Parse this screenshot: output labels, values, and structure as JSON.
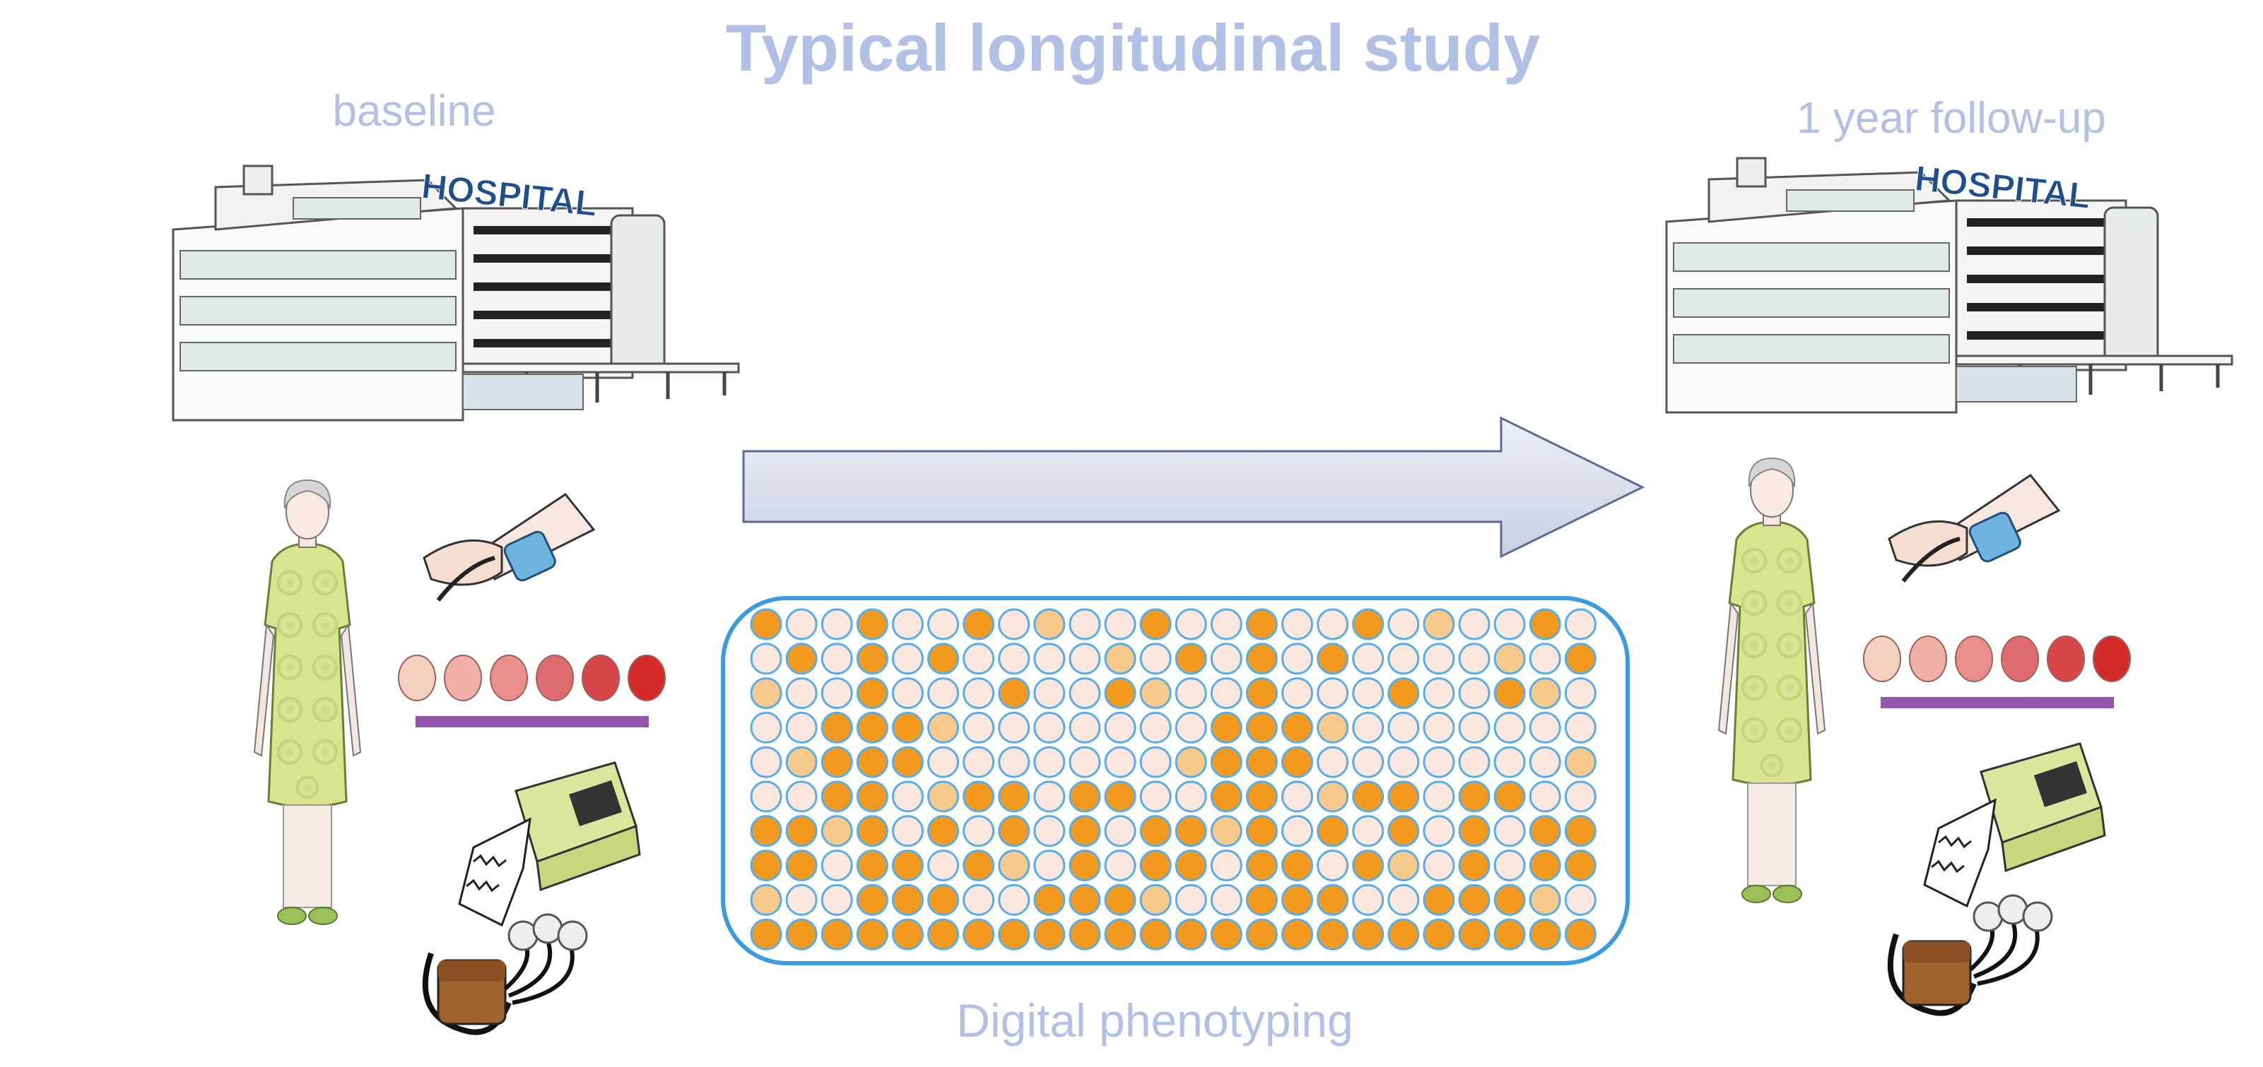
{
  "header": {
    "title": "Typical longitudinal study"
  },
  "timepoints": {
    "start": "baseline",
    "end": "1 year follow-up"
  },
  "hospital_sign": "HOSPITAL",
  "process": {
    "label": "Digital phenotyping"
  }
}
